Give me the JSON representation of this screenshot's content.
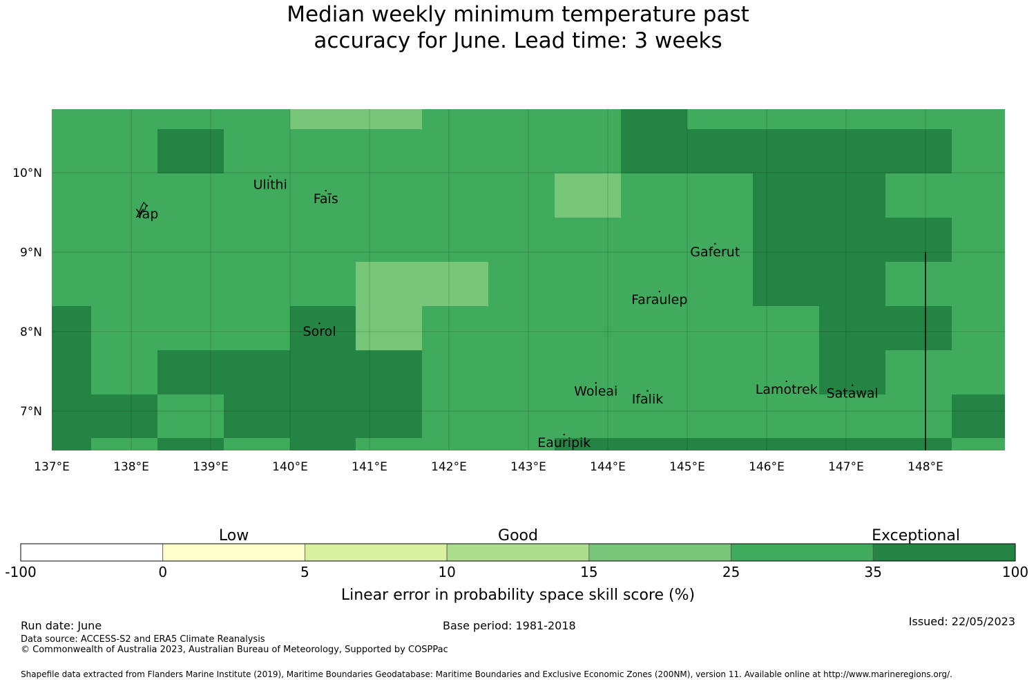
{
  "title": {
    "line1": "Median weekly minimum temperature past",
    "line2": "accuracy for June. Lead time: 3 weeks"
  },
  "map": {
    "lon_range": [
      137,
      149
    ],
    "lat_range": [
      6.5,
      10.8
    ],
    "x_ticks": [
      "137°E",
      "138°E",
      "139°E",
      "140°E",
      "141°E",
      "142°E",
      "143°E",
      "144°E",
      "145°E",
      "146°E",
      "147°E",
      "148°E"
    ],
    "y_ticks": [
      "10°N",
      "9°N",
      "8°N",
      "7°N"
    ],
    "colors": {
      "c15_25": "#78c679",
      "c25_35": "#41ab5d",
      "c35_100": "#238443"
    },
    "places": [
      {
        "name": "Ulithi",
        "lon": 139.75,
        "lat": 9.85
      },
      {
        "name": "Faīs",
        "lon": 140.45,
        "lat": 9.67
      },
      {
        "name": "Yap",
        "lon": 138.2,
        "lat": 9.48
      },
      {
        "name": "Gaferut",
        "lon": 145.35,
        "lat": 9.0
      },
      {
        "name": "Faraulep",
        "lon": 144.65,
        "lat": 8.4
      },
      {
        "name": "Sorol",
        "lon": 140.37,
        "lat": 8.0
      },
      {
        "name": "Woleai",
        "lon": 143.85,
        "lat": 7.25
      },
      {
        "name": "Ifalik",
        "lon": 144.5,
        "lat": 7.15
      },
      {
        "name": "Lamotrek",
        "lon": 146.25,
        "lat": 7.27
      },
      {
        "name": "Satawal",
        "lon": 147.08,
        "lat": 7.22
      },
      {
        "name": "Eauripik",
        "lon": 143.45,
        "lat": 6.6
      }
    ]
  },
  "colorbar": {
    "categories": [
      "Low",
      "Good",
      "Exceptional"
    ],
    "ticks": [
      "-100",
      "0",
      "5",
      "10",
      "15",
      "25",
      "35",
      "100"
    ],
    "colors": [
      "#ffffff",
      "#ffffcc",
      "#d9f0a3",
      "#addd8e",
      "#78c679",
      "#41ab5d",
      "#238443"
    ],
    "label": "Linear error in probability space skill score (%)"
  },
  "footer": {
    "run_date": "Run date: June",
    "base_period": "Base period: 1981-2018",
    "issued": "Issued: 22/05/2023",
    "data_source": "Data source: ACCESS-S2 and ERA5 Climate Reanalysis",
    "copyright": "© Commonwealth of Australia 2023, Australian Bureau of Meteorology, Supported by COSPPac",
    "shapefile": "Shapefile data extracted from Flanders Marine Institute (2019), Maritime Boundaries Geodatabase: Maritime Boundaries and Exclusive Economic Zones (200NM), version 11. Available online at http://www.marineregions.org/."
  }
}
